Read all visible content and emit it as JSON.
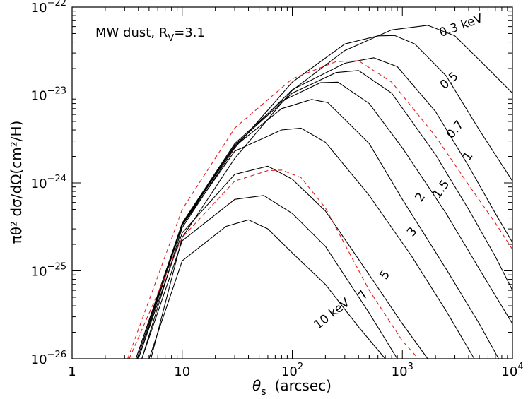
{
  "chart_data": {
    "type": "line",
    "annotation": {
      "main": "MW dust, R",
      "subscript": "V",
      "suffix": "=3.1"
    },
    "xlabel": {
      "symbol": "θ",
      "subscript": "s",
      "unit": "(arcsec)"
    },
    "ylabel": "πθ² dσ/dΩ(cm²/H)",
    "xscale": "log",
    "yscale": "log",
    "xlim": [
      1,
      10000
    ],
    "ylim": [
      1e-26,
      1e-22
    ],
    "x_ticks": [
      {
        "value": 1,
        "base": "1",
        "exp": ""
      },
      {
        "value": 10,
        "base": "10",
        "exp": ""
      },
      {
        "value": 100,
        "base": "10",
        "exp": "2"
      },
      {
        "value": 1000,
        "base": "10",
        "exp": "3"
      },
      {
        "value": 10000,
        "base": "10",
        "exp": "4"
      }
    ],
    "y_ticks": [
      {
        "value": 1e-26,
        "base": "10",
        "exp": "−26"
      },
      {
        "value": 1e-25,
        "base": "10",
        "exp": "−25"
      },
      {
        "value": 1e-24,
        "base": "10",
        "exp": "−24"
      },
      {
        "value": 1e-23,
        "base": "10",
        "exp": "−23"
      },
      {
        "value": 1e-22,
        "base": "10",
        "exp": "−22"
      }
    ],
    "series": [
      {
        "label": "0.3 keV",
        "style": "solid",
        "color": "#000000",
        "label_at": [
          3500,
          5.6e-23
        ],
        "label_angle": -20,
        "points": [
          [
            5.2,
            1e-26
          ],
          [
            10,
            2.4e-25
          ],
          [
            30,
            1.9e-24
          ],
          [
            100,
            1.13e-23
          ],
          [
            300,
            3.2e-23
          ],
          [
            800,
            5.5e-23
          ],
          [
            1700,
            6.2e-23
          ],
          [
            3000,
            4.7e-23
          ],
          [
            6000,
            2e-23
          ],
          [
            10000,
            1.05e-23
          ]
        ]
      },
      {
        "label": "0.5",
        "style": "solid",
        "color": "#000000",
        "label_at": [
          2800,
          1.35e-23
        ],
        "label_angle": -40,
        "points": [
          [
            4.3,
            1e-26
          ],
          [
            10,
            3.1e-25
          ],
          [
            30,
            2.5e-24
          ],
          [
            100,
            1.4e-23
          ],
          [
            300,
            3.8e-23
          ],
          [
            600,
            4.7e-23
          ],
          [
            850,
            4.75e-23
          ],
          [
            1300,
            3.8e-23
          ],
          [
            2500,
            1.65e-23
          ],
          [
            5000,
            4e-24
          ],
          [
            10000,
            1.05e-24
          ]
        ]
      },
      {
        "label": "0.7",
        "style": "solid",
        "color": "#000000",
        "label_at": [
          3200,
          3.8e-24
        ],
        "label_angle": -50,
        "points": [
          [
            4.0,
            1e-26
          ],
          [
            10,
            3.3e-25
          ],
          [
            30,
            2.6e-24
          ],
          [
            100,
            1.15e-23
          ],
          [
            300,
            2.3e-23
          ],
          [
            550,
            2.65e-23
          ],
          [
            900,
            2.1e-23
          ],
          [
            2000,
            6.5e-24
          ],
          [
            4000,
            1.55e-24
          ],
          [
            7000,
            4.5e-25
          ],
          [
            10000,
            2.1e-25
          ]
        ]
      },
      {
        "label": "1",
        "style": "solid",
        "color": "#000000",
        "label_at": [
          4200,
          1.9e-24
        ],
        "label_angle": -55,
        "points": [
          [
            3.9,
            1e-26
          ],
          [
            10,
            3.4e-25
          ],
          [
            30,
            2.7e-24
          ],
          [
            100,
            1.05e-23
          ],
          [
            250,
            1.8e-23
          ],
          [
            400,
            1.9e-23
          ],
          [
            800,
            1.05e-23
          ],
          [
            2000,
            2.1e-24
          ],
          [
            4000,
            5e-25
          ],
          [
            7000,
            1.45e-25
          ],
          [
            10000,
            6e-26
          ]
        ]
      },
      {
        "label": "1.5",
        "style": "solid",
        "color": "#000000",
        "label_at": [
          2400,
          8e-25
        ],
        "label_angle": -55,
        "points": [
          [
            3.8,
            1e-26
          ],
          [
            10,
            3.5e-25
          ],
          [
            30,
            2.8e-24
          ],
          [
            80,
            8.5e-24
          ],
          [
            180,
            1.38e-23
          ],
          [
            260,
            1.4e-23
          ],
          [
            500,
            8e-24
          ],
          [
            1000,
            2.5e-24
          ],
          [
            2500,
            4.5e-25
          ],
          [
            5000,
            1.05e-25
          ],
          [
            8500,
            3.5e-26
          ],
          [
            10000,
            2.5e-26
          ]
        ]
      },
      {
        "label": "2",
        "style": "solid",
        "color": "#000000",
        "label_at": [
          1550,
          6.5e-25
        ],
        "label_angle": -55,
        "points": [
          [
            3.8,
            1e-26
          ],
          [
            10,
            3.4e-25
          ],
          [
            30,
            2.6e-24
          ],
          [
            80,
            7e-24
          ],
          [
            150,
            8.9e-24
          ],
          [
            210,
            8.2e-24
          ],
          [
            500,
            2.8e-24
          ],
          [
            1000,
            6.5e-25
          ],
          [
            2500,
            1.05e-25
          ],
          [
            5000,
            2.5e-26
          ],
          [
            7500,
            1e-26
          ]
        ]
      },
      {
        "label": "3",
        "style": "solid",
        "color": "#000000",
        "label_at": [
          1300,
          2.6e-25
        ],
        "label_angle": -50,
        "points": [
          [
            3.9,
            1e-26
          ],
          [
            10,
            3.3e-25
          ],
          [
            30,
            2.3e-24
          ],
          [
            80,
            4e-24
          ],
          [
            120,
            4.2e-24
          ],
          [
            200,
            2.9e-24
          ],
          [
            500,
            7.2e-25
          ],
          [
            1200,
            1.5e-25
          ],
          [
            2500,
            3.5e-26
          ],
          [
            4500,
            1e-26
          ]
        ]
      },
      {
        "label": "5",
        "style": "solid",
        "color": "#000000",
        "label_at": [
          740,
          8.5e-26
        ],
        "label_angle": -55,
        "points": [
          [
            4.0,
            1e-26
          ],
          [
            10,
            2.7e-25
          ],
          [
            30,
            1.25e-24
          ],
          [
            60,
            1.55e-24
          ],
          [
            100,
            1.1e-24
          ],
          [
            200,
            4.8e-25
          ],
          [
            500,
            9e-26
          ],
          [
            1000,
            2.5e-26
          ],
          [
            1700,
            1e-26
          ]
        ]
      },
      {
        "label": "7",
        "style": "solid",
        "color": "#000000",
        "label_at": [
          470,
          5e-26
        ],
        "label_angle": -55,
        "points": [
          [
            4.3,
            1e-26
          ],
          [
            10,
            2.2e-25
          ],
          [
            30,
            6.5e-25
          ],
          [
            55,
            7.2e-25
          ],
          [
            100,
            4.5e-25
          ],
          [
            200,
            1.9e-25
          ],
          [
            500,
            3.3e-26
          ],
          [
            900,
            1e-26
          ]
        ]
      },
      {
        "label": "10 keV",
        "style": "solid",
        "color": "#000000",
        "label_at": [
          240,
          3e-26
        ],
        "label_angle": -38,
        "points": [
          [
            5.0,
            1e-26
          ],
          [
            10,
            1.3e-25
          ],
          [
            25,
            3.2e-25
          ],
          [
            40,
            3.8e-25
          ],
          [
            60,
            3e-25
          ],
          [
            100,
            1.6e-25
          ],
          [
            200,
            7e-26
          ],
          [
            400,
            2.3e-26
          ],
          [
            700,
            1e-26
          ]
        ]
      },
      {
        "label": "",
        "style": "dashed",
        "color": "#e41a1c",
        "points": [
          [
            3.2,
            1e-26
          ],
          [
            10,
            5e-25
          ],
          [
            30,
            4.2e-24
          ],
          [
            100,
            1.53e-23
          ],
          [
            250,
            2.4e-23
          ],
          [
            400,
            2.45e-23
          ],
          [
            800,
            1.4e-23
          ],
          [
            2000,
            3.4e-24
          ],
          [
            4000,
            9.5e-25
          ],
          [
            7000,
            3.5e-25
          ],
          [
            10000,
            1.75e-25
          ]
        ]
      },
      {
        "label": "",
        "style": "dashed",
        "color": "#e41a1c",
        "points": [
          [
            3.3,
            1e-26
          ],
          [
            10,
            2.4e-25
          ],
          [
            30,
            1.05e-24
          ],
          [
            60,
            1.38e-24
          ],
          [
            80,
            1.4e-24
          ],
          [
            120,
            1.15e-24
          ],
          [
            200,
            5.2e-25
          ],
          [
            500,
            6e-26
          ],
          [
            1000,
            1.6e-26
          ],
          [
            1400,
            1e-26
          ]
        ]
      }
    ]
  }
}
